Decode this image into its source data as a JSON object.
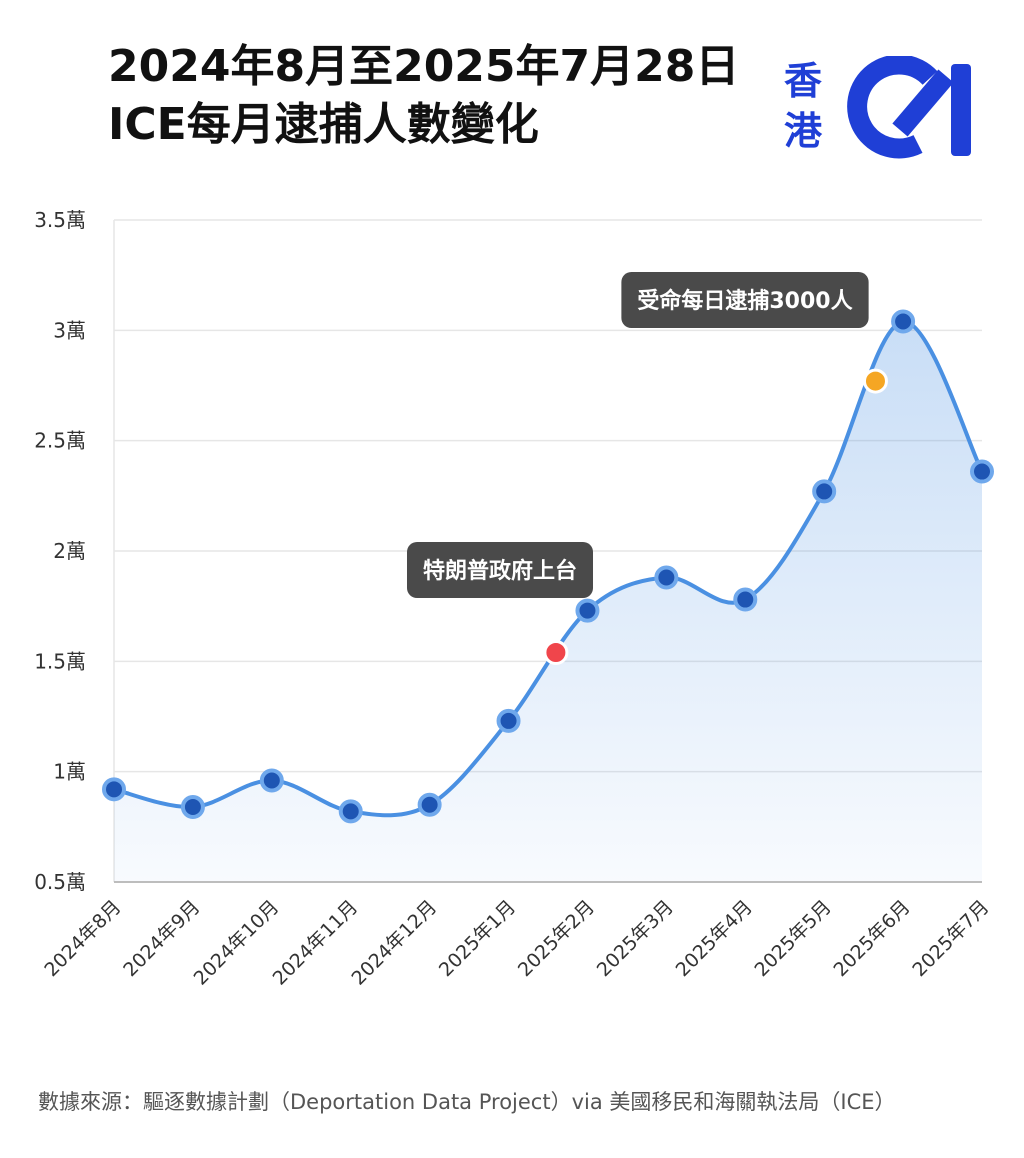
{
  "title": {
    "line1": "2024年8月至2025年7月28日",
    "line2": "ICE每月逮捕人數變化"
  },
  "logo": {
    "line1": "香",
    "line2": "港",
    "mark": "01",
    "icon": "hk01-logo-icon",
    "color": "#1f3fd6"
  },
  "source": "數據來源：驅逐數據計劃（Deportation Data Project）via 美國移民和海關執法局（ICE）",
  "chart_data": {
    "type": "line",
    "title": "2024年8月至2025年7月28日 ICE每月逮捕人數變化",
    "xlabel": "",
    "ylabel": "",
    "ylim": [
      5000,
      35000
    ],
    "yticks": [
      {
        "value": 5000,
        "label": "0.5萬"
      },
      {
        "value": 10000,
        "label": "1萬"
      },
      {
        "value": 15000,
        "label": "1.5萬"
      },
      {
        "value": 20000,
        "label": "2萬"
      },
      {
        "value": 25000,
        "label": "2.5萬"
      },
      {
        "value": 30000,
        "label": "3萬"
      },
      {
        "value": 35000,
        "label": "3.5萬"
      }
    ],
    "categories": [
      "2024年8月",
      "2024年9月",
      "2024年10月",
      "2024年11月",
      "2024年12月",
      "2025年1月",
      "2025年2月",
      "2025年3月",
      "2025年4月",
      "2025年5月",
      "2025年6月",
      "2025年7月"
    ],
    "values": [
      9200,
      8400,
      9600,
      8200,
      8500,
      12300,
      17300,
      18800,
      17800,
      22700,
      30400,
      23600
    ],
    "grid": true,
    "legend": "none",
    "line_color": "#4a90e2",
    "point_color": "#1e55b3",
    "annotations": [
      {
        "label": "特朗普政府上台",
        "x": 5.6,
        "value": 15400,
        "dot_color": "#f0454b"
      },
      {
        "label": "受命每日逮捕3000人",
        "x": 9.65,
        "value": 27700,
        "dot_color": "#f5a623"
      }
    ]
  }
}
